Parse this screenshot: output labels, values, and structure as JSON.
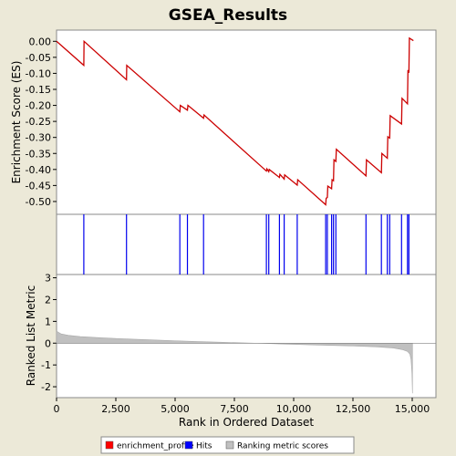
{
  "chart_data": {
    "type": "line",
    "title": "GSEA_Results",
    "xlabel": "Rank in Ordered Dataset",
    "xlim": [
      0,
      16000
    ],
    "xticks": [
      0,
      2500,
      5000,
      7500,
      10000,
      12500,
      15000
    ],
    "xtick_labels": [
      "0",
      "2,500",
      "5,000",
      "7,500",
      "10,000",
      "12,500",
      "15,000"
    ],
    "panels": {
      "enrichment": {
        "ylabel": "Enrichment Score (ES)",
        "ylim": [
          -0.54,
          0.035
        ],
        "yticks": [
          0.0,
          -0.05,
          -0.1,
          -0.15,
          -0.2,
          -0.25,
          -0.3,
          -0.35,
          -0.4,
          -0.45,
          -0.5
        ],
        "ytick_labels": [
          "0.00",
          "-0.05",
          "-0.10",
          "-0.15",
          "-0.20",
          "-0.25",
          "-0.30",
          "-0.35",
          "-0.40",
          "-0.45",
          "-0.50"
        ]
      },
      "hits": {},
      "ranking": {
        "ylabel": "Ranked List Metric",
        "ylim": [
          -2.5,
          3.15
        ],
        "yticks": [
          3,
          2,
          1,
          0,
          -1,
          -2
        ],
        "ytick_labels": [
          "3",
          "2",
          "1",
          "0",
          "-1",
          "-2"
        ]
      }
    },
    "series": [
      {
        "name": "enrichment_profile",
        "color": "#cc0000",
        "x": [
          0,
          1150,
          1160,
          2950,
          2960,
          5200,
          5220,
          5520,
          5540,
          6200,
          6220,
          8850,
          8870,
          8950,
          8970,
          9400,
          9420,
          9600,
          9620,
          10150,
          10170,
          11350,
          11370,
          11420,
          11440,
          11600,
          11620,
          11680,
          11700,
          11780,
          11800,
          13050,
          13070,
          13700,
          13720,
          13950,
          13970,
          14050,
          14070,
          14550,
          14570,
          14800,
          14820,
          14860,
          14880,
          15050
        ],
        "y": [
          0.0,
          -0.075,
          0.0,
          -0.12,
          -0.075,
          -0.22,
          -0.2,
          -0.215,
          -0.2,
          -0.24,
          -0.23,
          -0.405,
          -0.398,
          -0.407,
          -0.4,
          -0.425,
          -0.415,
          -0.43,
          -0.417,
          -0.449,
          -0.432,
          -0.51,
          -0.49,
          -0.487,
          -0.452,
          -0.46,
          -0.432,
          -0.435,
          -0.37,
          -0.375,
          -0.337,
          -0.42,
          -0.37,
          -0.41,
          -0.35,
          -0.365,
          -0.298,
          -0.302,
          -0.232,
          -0.258,
          -0.178,
          -0.195,
          -0.09,
          -0.098,
          0.01,
          0.002
        ]
      },
      {
        "name": "Hits",
        "color": "#0000ee",
        "x": [
          1150,
          2950,
          5200,
          5520,
          6200,
          8850,
          8950,
          9400,
          9600,
          10150,
          11350,
          11420,
          11600,
          11680,
          11780,
          13050,
          13700,
          13950,
          14050,
          14550,
          14800,
          14860
        ]
      },
      {
        "name": "Ranking metric scores",
        "color": "#c0c0c0",
        "x": [
          0,
          200,
          500,
          1000,
          2000,
          3000,
          4000,
          5000,
          6000,
          7000,
          8000,
          8700,
          9500,
          10500,
          11500,
          12500,
          13500,
          14200,
          14600,
          14800,
          14900,
          14950,
          14990,
          15010
        ],
        "y": [
          0.55,
          0.42,
          0.36,
          0.3,
          0.24,
          0.19,
          0.15,
          0.11,
          0.07,
          0.04,
          0.01,
          -0.01,
          -0.04,
          -0.07,
          -0.1,
          -0.13,
          -0.17,
          -0.22,
          -0.3,
          -0.38,
          -0.5,
          -0.75,
          -1.4,
          -2.3
        ]
      }
    ],
    "legend": {
      "position": "bottom",
      "entries": [
        {
          "label": "enrichment_profile",
          "color": "#ff0000"
        },
        {
          "label": "Hits",
          "color": "#0000ff"
        },
        {
          "label": "Ranking metric scores",
          "color": "#c0c0c0"
        }
      ]
    }
  }
}
